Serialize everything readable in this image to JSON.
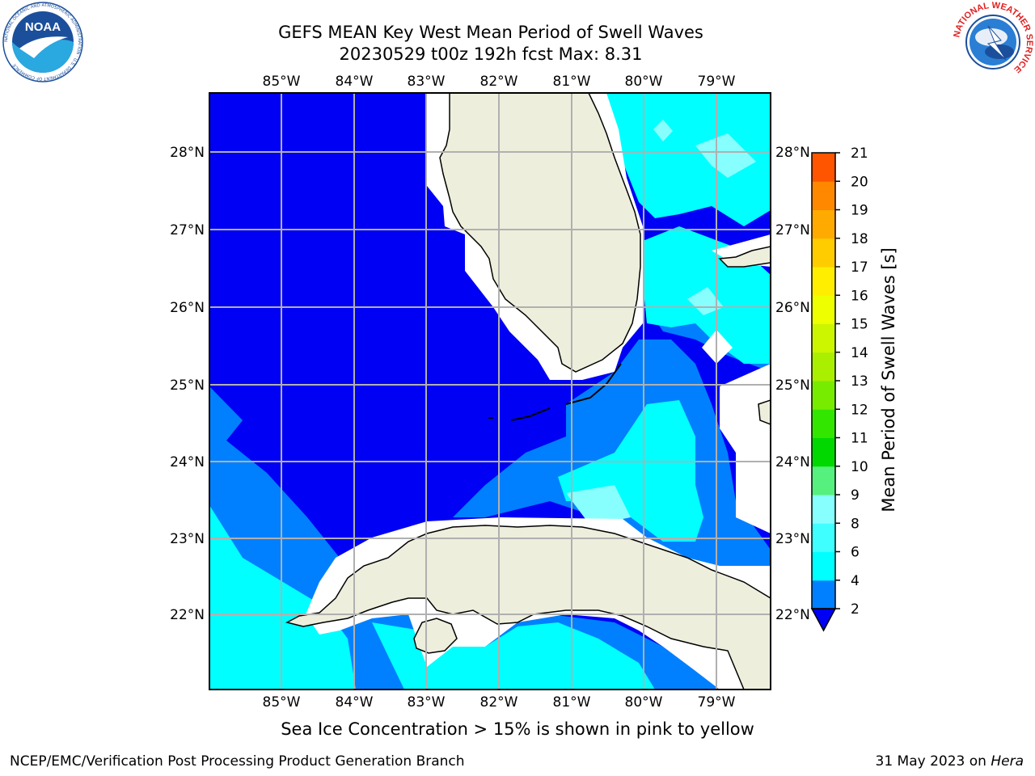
{
  "title": {
    "line1": "GEFS MEAN Key West Mean Period of Swell Waves",
    "line2": "20230529 t00z 192h fcst   Max: 8.31"
  },
  "map": {
    "lon_labels": [
      "85°W",
      "84°W",
      "83°W",
      "82°W",
      "81°W",
      "80°W",
      "79°W"
    ],
    "lat_labels": [
      "28°N",
      "27°N",
      "26°N",
      "25°N",
      "24°N",
      "23°N",
      "22°N"
    ],
    "ocean_colors": {
      "level_2_4": "#0000f5",
      "level_4_6": "#0080ff",
      "level_6_8": "#00ffff",
      "level_8_9": "#88ffff",
      "land": "#eeeedd",
      "missing": "#ffffff"
    }
  },
  "colorbar": {
    "title": "Mean Period of Swell Waves [s]",
    "labels": [
      "2",
      "4",
      "6",
      "8",
      "9",
      "10",
      "11",
      "12",
      "13",
      "14",
      "15",
      "16",
      "17",
      "18",
      "19",
      "20",
      "21"
    ],
    "colors": [
      "#0080ff",
      "#00ffff",
      "#40ffff",
      "#88ffff",
      "#55f07d",
      "#00d800",
      "#33e600",
      "#77ec00",
      "#aaee00",
      "#ccf500",
      "#eeff00",
      "#ffee00",
      "#ffcc00",
      "#ffaa00",
      "#ff8800",
      "#ff5500",
      "#ff2200",
      "#ff0000"
    ],
    "extend_color": "#0000f5"
  },
  "ice_note": "Sea Ice Concentration > 15% is shown in pink to yellow",
  "footer": {
    "left": "NCEP/EMC/Verification Post Processing Product Generation Branch",
    "right_date": "31 May 2023 on ",
    "right_host": "Hera"
  },
  "logos": {
    "noaa_text": "NOAA",
    "noaa_ring_text": "NATIONAL OCEANIC AND ATMOSPHERIC ADMINISTRATION · U.S. DEPARTMENT OF COMMERCE",
    "nws_ring_text": "NATIONAL WEATHER SERVICE"
  }
}
